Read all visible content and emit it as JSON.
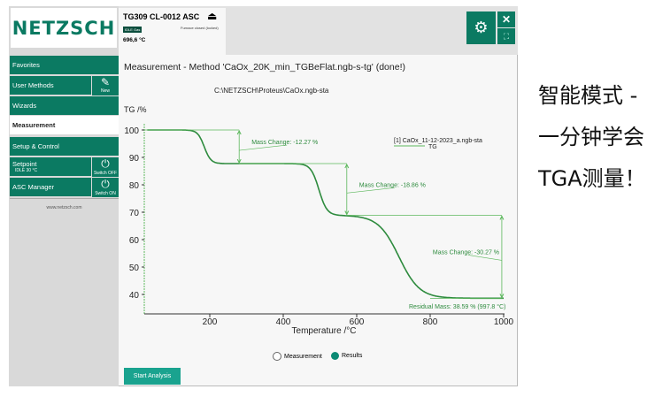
{
  "sidebar": {
    "logo": "NETZSCH",
    "items": [
      {
        "label": "Favorites"
      },
      {
        "label": "User Methods"
      },
      {
        "label": "Wizards"
      },
      {
        "label": "Measurement"
      },
      {
        "label": "Setup & Control"
      },
      {
        "label": "Setpoint",
        "sub": "IDLE 30 °C"
      },
      {
        "label": "ASC Manager"
      }
    ],
    "new_label": "New",
    "switch_off": "Switch OFF",
    "switch_on": "Switch ON",
    "website": "www.netzsch.com"
  },
  "instrument": {
    "name": "TG309 CL-0012 ASC",
    "status": "IDLE Gas",
    "furnace": "Furnace closed (locked)",
    "temperature": "696,6 °C"
  },
  "main": {
    "title": "Measurement - Method 'CaOx_20K_min_TGBeFlat.ngb-s-tg' (done!)",
    "path": "C:\\NETZSCH\\Proteus\\CaOx.ngb-sta",
    "radio_measurement": "Measurement",
    "radio_results": "Results",
    "start_button": "Start Analysis"
  },
  "caption": [
    "智能模式 -",
    "一分钟学会",
    "TGA测量！"
  ],
  "chart_data": {
    "type": "line",
    "ylabel": "TG /%",
    "xlabel": "Temperature /°C",
    "xlim": [
      30,
      1000
    ],
    "ylim": [
      35,
      102
    ],
    "xticks": [
      200,
      400,
      600,
      800,
      1000
    ],
    "yticks": [
      100,
      90,
      80,
      70,
      60,
      50,
      40
    ],
    "legend": {
      "file": "[1]  CaOx_11-12-2023_a.ngb-sta",
      "series": "TG",
      "placement": "top-right"
    },
    "steps": [
      {
        "center": 185,
        "width": 9,
        "drop": 12.27
      },
      {
        "center": 497,
        "width": 11,
        "drop": 18.86
      },
      {
        "center": 715,
        "width": 28,
        "drop": 30.27
      }
    ],
    "start": {
      "x": 30,
      "y": 100
    },
    "annotations": [
      {
        "text": "Mass Change: -12.27 %",
        "x": 280,
        "from": 100,
        "to": 87.73
      },
      {
        "text": "Mass Change: -18.86 %",
        "x": 573,
        "from": 87.73,
        "to": 68.87
      },
      {
        "text": "Mass Change: -30.27 %",
        "x": 995,
        "from": 68.87,
        "to": 38.59
      }
    ],
    "residual": "Residual Mass: 38.59 % (997.8 °C)",
    "color": "#2e8b3e"
  }
}
